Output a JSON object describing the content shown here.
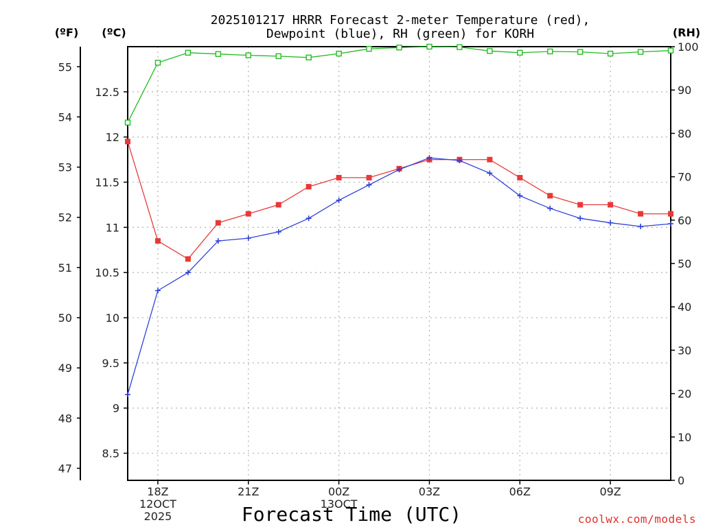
{
  "chart_data": {
    "type": "line",
    "title_lines": [
      "2025101217 HRRR Forecast 2-meter Temperature (red),",
      "Dewpoint (blue), RH (green) for KORH"
    ],
    "xlabel": "Forecast Time (UTC)",
    "credit": "coolwx.com/models",
    "axis_unit_labels": {
      "fahrenheit": "(ºF)",
      "celsius": "(ºC)",
      "rh": "(RH)"
    },
    "x": [
      17,
      18,
      19,
      20,
      21,
      22,
      23,
      24,
      25,
      26,
      27,
      28,
      29,
      30,
      31,
      32,
      33,
      34,
      35
    ],
    "xlim": [
      17,
      35
    ],
    "x_ticks": [
      {
        "x": 18,
        "lines": [
          "18Z",
          "12OCT",
          "2025"
        ]
      },
      {
        "x": 21,
        "lines": [
          "21Z"
        ]
      },
      {
        "x": 24,
        "lines": [
          "00Z",
          "13OCT"
        ]
      },
      {
        "x": 27,
        "lines": [
          "03Z"
        ]
      },
      {
        "x": 30,
        "lines": [
          "06Z"
        ]
      },
      {
        "x": 33,
        "lines": [
          "09Z"
        ]
      }
    ],
    "y_celsius": {
      "range": [
        8.2,
        13.0
      ],
      "ticks": [
        8.5,
        9,
        9.5,
        10,
        10.5,
        11,
        11.5,
        12,
        12.5
      ],
      "tick_labels": [
        "8.5",
        "9",
        "9.5",
        "10",
        "10.5",
        "11",
        "11.5",
        "12",
        "12.5"
      ]
    },
    "y_fahrenheit": {
      "ticks": [
        47,
        48,
        49,
        50,
        51,
        52,
        53,
        54,
        55
      ],
      "tick_labels": [
        "47",
        "48",
        "49",
        "50",
        "51",
        "52",
        "53",
        "54",
        "55"
      ]
    },
    "y_rh": {
      "range": [
        0,
        100
      ],
      "ticks": [
        0,
        10,
        20,
        30,
        40,
        50,
        60,
        70,
        80,
        90,
        100
      ],
      "tick_labels": [
        "0",
        "10",
        "20",
        "30",
        "40",
        "50",
        "60",
        "70",
        "80",
        "90",
        "100"
      ]
    },
    "series": [
      {
        "name": "Temperature",
        "axis": "celsius",
        "color": "#e8393a",
        "marker": "filled-square",
        "values": [
          11.95,
          10.85,
          10.65,
          11.05,
          11.15,
          11.25,
          11.45,
          11.55,
          11.55,
          11.65,
          11.75,
          11.75,
          11.75,
          11.55,
          11.35,
          11.25,
          11.25,
          11.15,
          11.15
        ]
      },
      {
        "name": "Dewpoint",
        "axis": "celsius",
        "color": "#3040d8",
        "marker": "plus",
        "values": [
          9.15,
          10.3,
          10.5,
          10.85,
          10.88,
          10.95,
          11.1,
          11.3,
          11.47,
          11.64,
          11.77,
          11.74,
          11.6,
          11.35,
          11.21,
          11.1,
          11.05,
          11.01,
          11.04
        ]
      },
      {
        "name": "RH",
        "axis": "rh",
        "color": "#22bb22",
        "marker": "open-square",
        "values": [
          82.5,
          96.3,
          98.6,
          98.3,
          98.0,
          97.8,
          97.5,
          98.4,
          99.5,
          99.8,
          100,
          99.9,
          99.0,
          98.6,
          98.9,
          98.8,
          98.4,
          98.8,
          99.1
        ]
      }
    ]
  }
}
